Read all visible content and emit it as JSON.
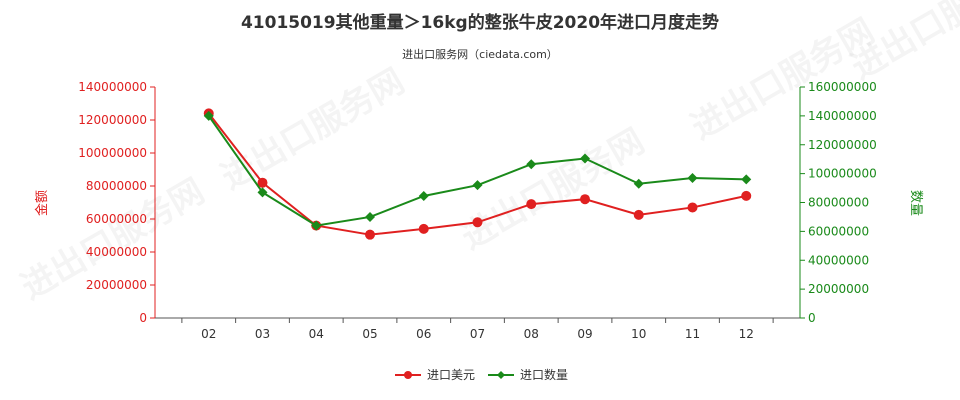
{
  "chart_data": {
    "type": "line",
    "title": "41015019其他重量＞16kg的整张牛皮2020年进口月度走势",
    "subtitle": "进出口服务网（ciedata.com）",
    "categories": [
      "02",
      "03",
      "04",
      "05",
      "06",
      "07",
      "08",
      "09",
      "10",
      "11",
      "12"
    ],
    "series": [
      {
        "name": "进口美元",
        "axis": "left",
        "color": "#e02020",
        "values": [
          124000000,
          82000000,
          56000000,
          50500000,
          54000000,
          58000000,
          69000000,
          72000000,
          62500000,
          67000000,
          74000000
        ]
      },
      {
        "name": "进口数量",
        "axis": "right",
        "color": "#1a8a1a",
        "values": [
          140000000,
          87000000,
          64000000,
          70000000,
          84500000,
          92000000,
          106500000,
          110500000,
          93000000,
          97000000,
          96000000
        ]
      }
    ],
    "y_left": {
      "label": "金额",
      "ylim": [
        0,
        140000000
      ],
      "ticks": [
        "0",
        "20000000",
        "40000000",
        "60000000",
        "80000000",
        "100000000",
        "120000000",
        "140000000"
      ]
    },
    "y_right": {
      "label": "数量",
      "ylim": [
        0,
        160000000
      ],
      "ticks": [
        "0",
        "20000000",
        "40000000",
        "60000000",
        "80000000",
        "100000000",
        "120000000",
        "140000000",
        "160000000"
      ]
    },
    "grid": false,
    "legend_position": "bottom-center",
    "watermark": "进出口服务网"
  }
}
